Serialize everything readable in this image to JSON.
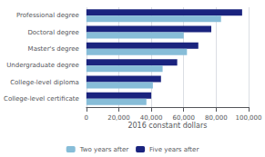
{
  "chart_data": {
    "type": "bar",
    "orientation": "horizontal",
    "categories": [
      "College-level certificate",
      "College-level diploma",
      "Undergraduate degree",
      "Master's degree",
      "Doctoral degree",
      "Professional degree"
    ],
    "series": [
      {
        "name": "Two years after",
        "color": "#87bdd8",
        "values": [
          37000,
          41000,
          47000,
          62000,
          60000,
          83000
        ]
      },
      {
        "name": "Five years after",
        "color": "#1a237e",
        "values": [
          40000,
          46000,
          56000,
          69000,
          77000,
          96000
        ]
      }
    ],
    "xlabel": "2016 constant dollars",
    "xlim": [
      0,
      100000
    ],
    "xticks": [
      0,
      {
        "value": 20000,
        "label": "20,000"
      },
      {
        "value": 40000,
        "label": "40,000"
      },
      {
        "value": 60000,
        "label": "60,000"
      },
      {
        "value": 80000,
        "label": "80,000"
      },
      {
        "value": 100000,
        "label": "100,000"
      }
    ],
    "grid": true,
    "legend": "bottom"
  }
}
